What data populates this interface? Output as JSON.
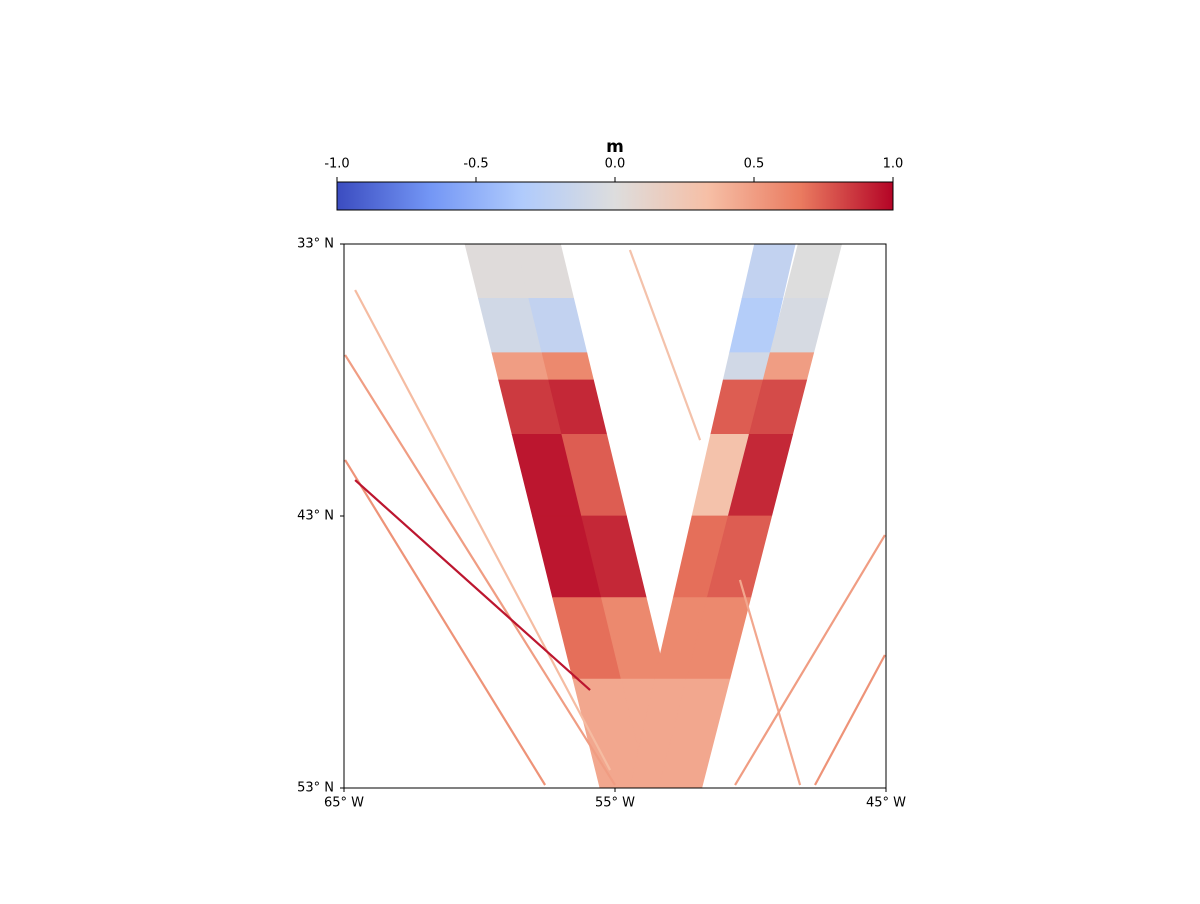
{
  "chart_data": {
    "type": "swath-map",
    "colorbar_label": "m",
    "clim": [
      -1,
      1
    ],
    "cticks": [
      {
        "value": -1,
        "label": "-1.0"
      },
      -0.5,
      {
        "value": 0,
        "label": "0.0"
      },
      0.5,
      {
        "value": 1,
        "label": "1.0"
      }
    ],
    "colormap": [
      "#3b4cc0",
      "#7396f5",
      "#b0cbfc",
      "#dddddd",
      "#f6bfa6",
      "#ea7b60",
      "#b40426"
    ],
    "xlim": [
      -65,
      -45
    ],
    "ylim": [
      33,
      53
    ],
    "xticks": [
      {
        "value": -65,
        "label": "65° W"
      },
      {
        "value": -55,
        "label": "55° W"
      },
      {
        "value": -45,
        "label": "45° W"
      }
    ],
    "yticks": [
      {
        "value": 33,
        "label": "33° N"
      },
      {
        "value": 43,
        "label": "43° N"
      },
      {
        "value": 53,
        "label": "53° N"
      }
    ],
    "swath_lat": [
      33,
      35,
      37,
      38,
      40,
      43,
      46,
      49,
      53
    ],
    "swaths": [
      {
        "lon": [
          -59.61,
          -54.63
        ],
        "width": 1.85,
        "values": [
          0.02,
          -0.1,
          0.5,
          0.85,
          0.95,
          0.95,
          0.7,
          0.45
        ]
      },
      {
        "lon": [
          -57.84,
          -52.97
        ],
        "width": 1.65,
        "values": [
          0.02,
          -0.2,
          0.6,
          0.9,
          0.75,
          0.9,
          0.6,
          0.45
        ]
      },
      {
        "lon": [
          -49.1,
          -53.71
        ],
        "width": 1.5,
        "values": [
          -0.2,
          -0.3,
          -0.1,
          0.75,
          0.3,
          0.7,
          0.6,
          0.45
        ]
      },
      {
        "lon": [
          -47.44,
          -52.6
        ],
        "width": 1.6,
        "values": [
          0.0,
          -0.05,
          0.5,
          0.8,
          0.9,
          0.75,
          0.6,
          0.45
        ]
      }
    ],
    "tracks": [
      {
        "lon": [
          -64.59,
          -55.18
        ],
        "lat": [
          34.69,
          52.34
        ],
        "value": 0.35
      },
      {
        "lon": [
          -64.96,
          -55.0
        ],
        "lat": [
          37.08,
          52.89
        ],
        "value": 0.5
      },
      {
        "lon": [
          -64.96,
          -57.58
        ],
        "lat": [
          40.94,
          52.89
        ],
        "value": 0.55
      },
      {
        "lon": [
          -64.59,
          -55.92
        ],
        "lat": [
          41.68,
          49.4
        ],
        "value": 0.95
      },
      {
        "lon": [
          -54.45,
          -51.86
        ],
        "lat": [
          33.22,
          40.21
        ],
        "value": 0.3
      },
      {
        "lon": [
          -50.39,
          -48.17
        ],
        "lat": [
          45.35,
          52.89
        ],
        "value": 0.45
      },
      {
        "lon": [
          -50.57,
          -45.04
        ],
        "lat": [
          52.89,
          43.7
        ],
        "value": 0.5
      },
      {
        "lon": [
          -47.62,
          -45.04
        ],
        "lat": [
          52.89,
          48.11
        ],
        "value": 0.55
      }
    ]
  }
}
